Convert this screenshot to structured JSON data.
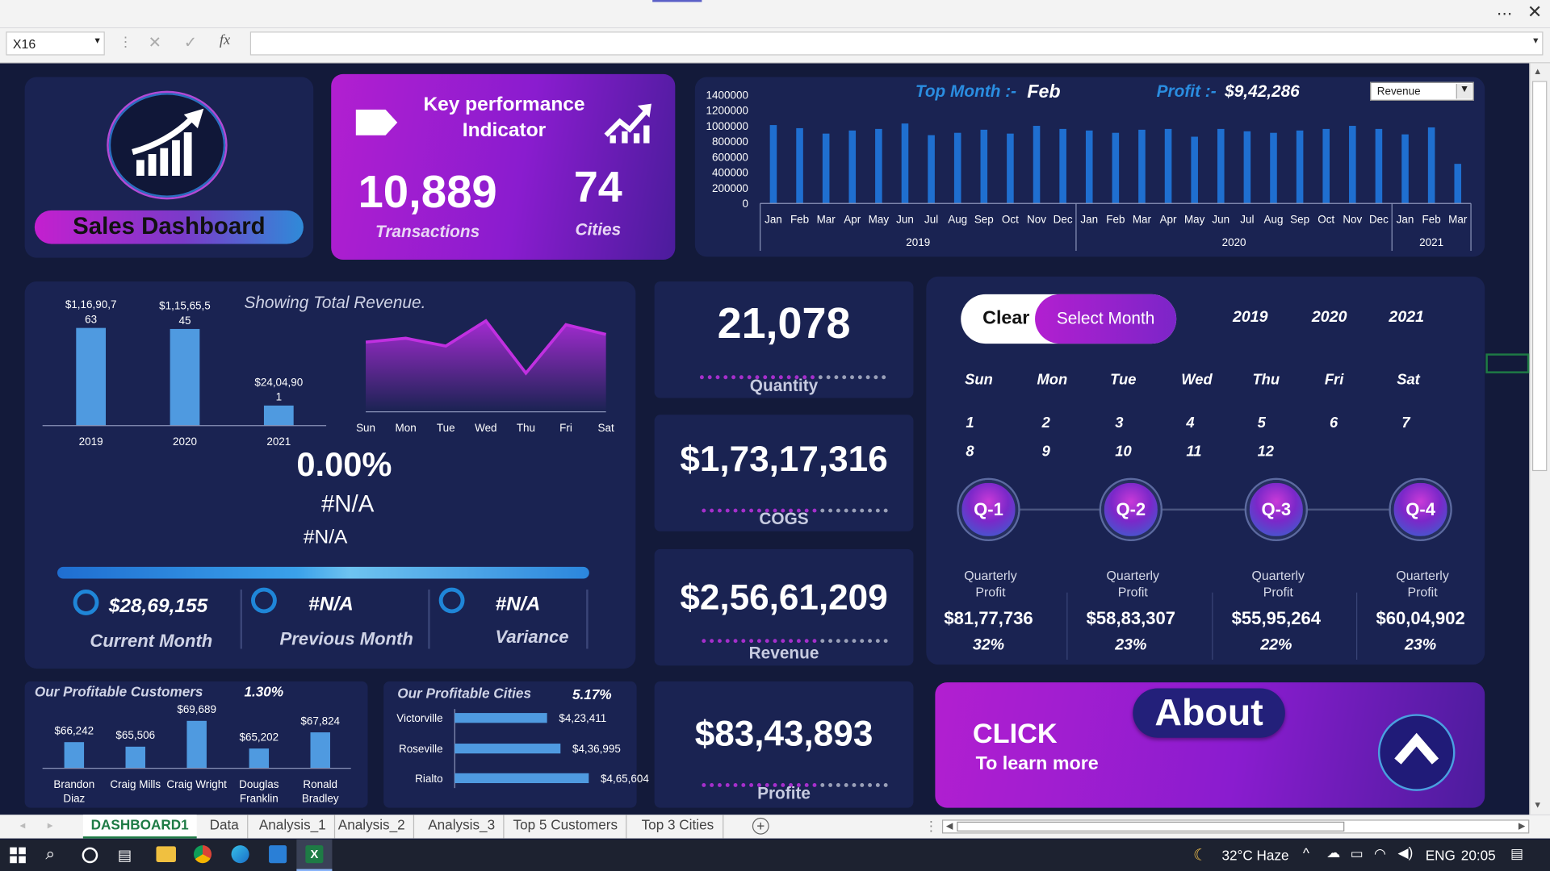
{
  "excel": {
    "name_box": "X16",
    "fx_label": "fx",
    "sheet_tabs": [
      "DASHBOARD1",
      "Data",
      "Analysis_1",
      "Analysis_2",
      "Analysis_3",
      "Top 5 Customers",
      "Top 3 Cities"
    ],
    "active_tab": "DASHBOARD1"
  },
  "taskbar": {
    "weather": "32°C Haze",
    "language": "ENG",
    "time": "20:05"
  },
  "logo_panel": {
    "title": "Sales Dashboard"
  },
  "kpi": {
    "title_line1": "Key performance",
    "title_line2": "Indicator",
    "transactions_value": "10,889",
    "transactions_label": "Transactions",
    "cities_value": "74",
    "cities_label": "Cities"
  },
  "monthly_chart": {
    "top_month_label": "Top Month :-",
    "top_month_value": "Feb",
    "profit_label": "Profit :-",
    "profit_value": "$9,42,286",
    "dropdown_value": "Revenue",
    "y_ticks": [
      "1400000",
      "1200000",
      "1000000",
      "800000",
      "600000",
      "400000",
      "200000",
      "0"
    ],
    "months": [
      "Jan",
      "Feb",
      "Mar",
      "Apr",
      "May",
      "Jun",
      "Jul",
      "Aug",
      "Sep",
      "Oct",
      "Nov",
      "Dec",
      "Jan",
      "Feb",
      "Mar",
      "Apr",
      "May",
      "Jun",
      "Jul",
      "Aug",
      "Sep",
      "Oct",
      "Nov",
      "Dec",
      "Jan",
      "Feb",
      "Mar"
    ],
    "years": [
      "2019",
      "2020",
      "2021"
    ]
  },
  "chart_data": [
    {
      "type": "bar",
      "categories": [
        "Jan",
        "Feb",
        "Mar",
        "Apr",
        "May",
        "Jun",
        "Jul",
        "Aug",
        "Sep",
        "Oct",
        "Nov",
        "Dec",
        "Jan",
        "Feb",
        "Mar",
        "Apr",
        "May",
        "Jun",
        "Jul",
        "Aug",
        "Sep",
        "Oct",
        "Nov",
        "Dec",
        "Jan",
        "Feb",
        "Mar"
      ],
      "groups": [
        "2019",
        "2020",
        "2021"
      ],
      "values": [
        1010000,
        970000,
        900000,
        940000,
        960000,
        1030000,
        880000,
        910000,
        950000,
        900000,
        1000000,
        960000,
        940000,
        910000,
        950000,
        960000,
        860000,
        960000,
        930000,
        910000,
        940000,
        960000,
        1000000,
        960000,
        890000,
        980000,
        510000
      ],
      "ylim": [
        0,
        1400000
      ]
    },
    {
      "type": "bar",
      "categories": [
        "2019",
        "2020",
        "2021"
      ],
      "values": [
        11690763,
        11565545,
        2404901
      ],
      "data_labels": [
        "$1,16,90,7 63",
        "$1,15,65,5 45",
        "$24,04,90 1"
      ]
    },
    {
      "type": "area",
      "categories": [
        "Sun",
        "Mon",
        "Tue",
        "Wed",
        "Thu",
        "Fri",
        "Sat"
      ],
      "values": [
        72,
        76,
        68,
        94,
        40,
        90,
        80
      ],
      "ylim": [
        0,
        100
      ]
    },
    {
      "type": "bar",
      "categories": [
        "Brandon Diaz",
        "Craig Mills",
        "Craig Wright",
        "Douglas Franklin",
        "Ronald Bradley"
      ],
      "values": [
        66242,
        65506,
        69689,
        65202,
        67824
      ],
      "data_labels": [
        "$66,242",
        "$65,506",
        "$69,689",
        "$65,202",
        "$67,824"
      ]
    },
    {
      "type": "bar",
      "orientation": "horizontal",
      "categories": [
        "Victorville",
        "Roseville",
        "Rialto"
      ],
      "values": [
        423411,
        436995,
        465604
      ],
      "data_labels": [
        "$4,23,411",
        "$4,36,995",
        "$4,65,604"
      ]
    }
  ],
  "revenue_panel": {
    "caption": "Showing Total Revenue.",
    "percent": "0.00%",
    "na1": "#N/A",
    "na2": "#N/A",
    "current_value": "$28,69,155",
    "current_label": "Current Month",
    "previous_value": "#N/A",
    "previous_label": "Previous Month",
    "variance_value": "#N/A",
    "variance_label": "Variance"
  },
  "metrics": {
    "quantity_value": "21,078",
    "quantity_label": "Quantity",
    "cogs_value": "$1,73,17,316",
    "cogs_label": "COGS",
    "revenue_value": "$2,56,61,209",
    "revenue_label": "Revenue",
    "profit_value": "$83,43,893",
    "profit_label": "Profite"
  },
  "calendar": {
    "clear_label": "Clear",
    "select_month_label": "Select Month",
    "years": [
      "2019",
      "2020",
      "2021"
    ],
    "weekdays": [
      "Sun",
      "Mon",
      "Tue",
      "Wed",
      "Thu",
      "Fri",
      "Sat"
    ],
    "days": [
      "1",
      "2",
      "3",
      "4",
      "5",
      "6",
      "7",
      "8",
      "9",
      "10",
      "11",
      "12"
    ]
  },
  "quarters": [
    {
      "label": "Q-1",
      "caption": "Quarterly Profit",
      "value": "$81,77,736",
      "pct": "32%"
    },
    {
      "label": "Q-2",
      "caption": "Quarterly Profit",
      "value": "$58,83,307",
      "pct": "23%"
    },
    {
      "label": "Q-3",
      "caption": "Quarterly Profit",
      "value": "$55,95,264",
      "pct": "22%"
    },
    {
      "label": "Q-4",
      "caption": "Quarterly Profit",
      "value": "$60,04,902",
      "pct": "23%"
    }
  ],
  "customers": {
    "title": "Our Profitable Customers",
    "pct": "1.30%",
    "names": [
      "Brandon Diaz",
      "Craig Mills",
      "Craig Wright",
      "Douglas Franklin",
      "Ronald Bradley"
    ]
  },
  "cities": {
    "title": "Our Profitable Cities",
    "pct": "5.17%",
    "names": [
      "Victorville",
      "Roseville",
      "Rialto"
    ]
  },
  "about": {
    "click": "CLICK",
    "learn": "To learn more",
    "button": "About"
  },
  "colors": {
    "background": "#131a3a",
    "panel": "#1a2352",
    "accent_purple": "#b21fd0",
    "bar_blue": "#1f6fd0",
    "light_bar": "#4f9ae0"
  }
}
